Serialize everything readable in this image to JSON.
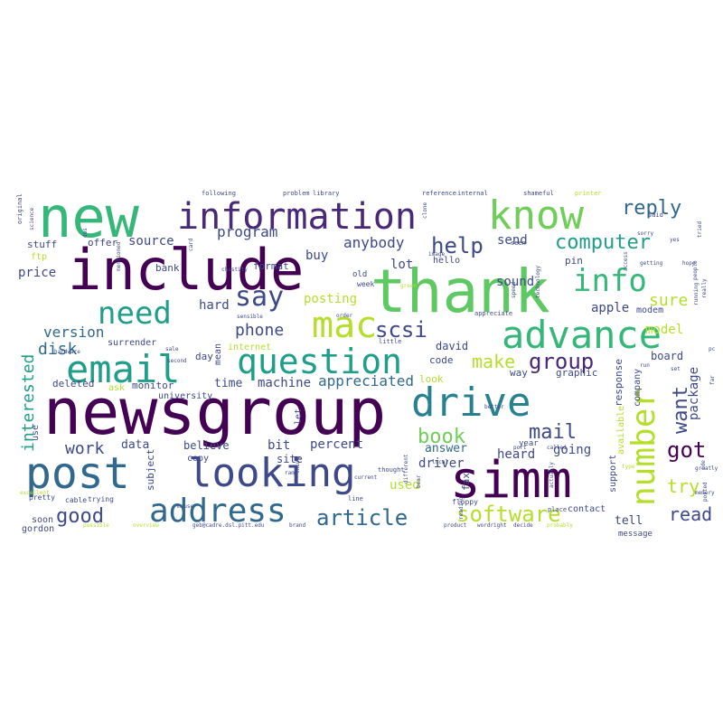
{
  "palette": {
    "dark_purple": "#440154",
    "purple": "#482878",
    "indigo": "#3e4989",
    "blue": "#31688e",
    "teal_blue": "#26828e",
    "teal": "#1f9e89",
    "green": "#35b779",
    "light_green": "#6ece58",
    "lime": "#b5de2b",
    "yellow": "#fde725"
  },
  "words": {
    "newsgroup": "newsgroup",
    "include": "include",
    "thank": "thank",
    "new": "new",
    "simm": "simm",
    "post": "post",
    "information": "information",
    "know": "know",
    "looking": "looking",
    "drive": "drive",
    "advance": "advance",
    "email": "email",
    "question": "question",
    "mac": "mac",
    "address": "address",
    "info": "info",
    "need": "need",
    "number": "number",
    "say": "say",
    "software": "software",
    "group": "group",
    "article": "article",
    "computer": "computer",
    "reply": "reply",
    "book": "book",
    "mail": "mail",
    "want": "want",
    "got": "got",
    "scsi": "scsi",
    "help": "help",
    "interested": "interested",
    "good": "good",
    "read": "read",
    "make": "make",
    "try": "try",
    "anybody": "anybody",
    "work": "work",
    "phone": "phone",
    "appreciated": "appreciated",
    "disk": "disk",
    "version": "version",
    "program": "program",
    "sure": "sure",
    "source": "source",
    "machine": "machine",
    "package": "package",
    "driver": "driver",
    "heard": "heard",
    "used": "used",
    "answer": "answer",
    "going": "going",
    "percent": "percent",
    "posting": "posting",
    "buy": "buy",
    "data": "data",
    "lot": "lot",
    "sound": "sound",
    "send": "send",
    "apple": "apple",
    "model": "model",
    "price": "price",
    "time": "time",
    "hard": "hard",
    "bit": "bit",
    "believe": "believe",
    "david": "david",
    "code": "code",
    "deleted": "deleted",
    "day": "day",
    "tell": "tell",
    "site": "site",
    "board": "board",
    "graphic": "graphic",
    "way": "way",
    "use": "use",
    "stuff": "stuff",
    "offer": "offer",
    "bank": "bank",
    "university": "university",
    "monitor": "monitor",
    "subject": "subject",
    "format": "format",
    "hello": "hello",
    "contact": "contact",
    "pin": "pin",
    "modem": "modem",
    "fax": "fax",
    "look": "look",
    "response": "response",
    "available": "available",
    "company": "company",
    "support": "support",
    "copy": "copy",
    "mean": "mean",
    "ftp": "ftp",
    "surrender": "surrender",
    "internet": "internet",
    "ask": "ask",
    "let": "let",
    "year": "year",
    "message": "message",
    "soon": "soon",
    "gordon": "gordon",
    "following": "following",
    "problem": "problem",
    "library": "library",
    "reference": "reference",
    "internal": "internal",
    "shameful": "shameful",
    "printer": "printer",
    "original": "original",
    "said": "said",
    "old": "old",
    "week": "week",
    "chastity": "chastity",
    "sensible": "sensible",
    "hardware": "hardware",
    "little": "little",
    "trying": "trying",
    "cable": "cable",
    "pretty": "pretty",
    "floppy": "floppy",
    "line": "line",
    "place": "place",
    "possible": "possible",
    "overview": "overview",
    "geb": "geb@cadre.dsl.pitt.edu",
    "brand": "brand",
    "product": "product",
    "wordright": "wordright",
    "decide": "decide",
    "probably": "probably",
    "better": "better",
    "port": "port",
    "called": "called",
    "memory": "memory",
    "thought": "thought",
    "image": "image",
    "seen": "seen",
    "current": "current",
    "getting": "getting",
    "hope": "hope",
    "people": "people",
    "really": "really",
    "sorry": "sorry",
    "card": "card",
    "mouse": "mouse",
    "sale": "sale",
    "second": "second",
    "mentioned": "mentioned",
    "science": "science",
    "technology": "technology",
    "speed": "speed",
    "running": "running",
    "different": "different",
    "local": "local",
    "greatly": "greatly",
    "posted": "posted",
    "appreciate": "appreciate",
    "actually": "actually",
    "green": "green",
    "clone": "clone",
    "order": "order",
    "tried": "tried",
    "reading": "reading",
    "set": "set",
    "run": "run",
    "far": "far",
    "thing": "thing",
    "excellent": "excellent",
    "yes": "yes",
    "access": "access",
    "ide": "ide",
    "dos": "dos",
    "pc": "pc",
    "bear": "bear",
    "ram": "ram",
    "type": "type"
  }
}
